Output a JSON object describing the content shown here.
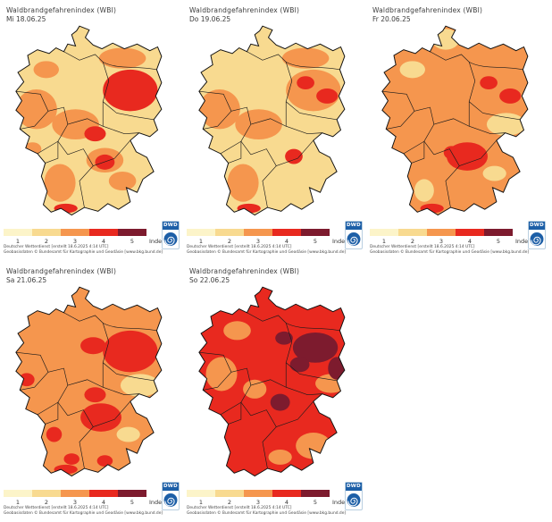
{
  "page": {
    "background": "#ffffff"
  },
  "palette": {
    "1": "#FCF4C9",
    "2": "#F8DA90",
    "3": "#F5964E",
    "4": "#E8291F",
    "5": "#7D1B2E"
  },
  "legend": {
    "ticks": [
      "1",
      "2",
      "3",
      "4",
      "5"
    ],
    "unit": "Index"
  },
  "attribution": {
    "line1": "Deutscher Wetterdienst [erstellt 18.6.2025 4:14 UTC]",
    "line2": "Geobasisdaten © Bundesamt für Kartographie und Geodäsie [www.bkg.bund.de]"
  },
  "logo": {
    "text": "DWD",
    "blue": "#1d5fa7"
  },
  "panels": [
    {
      "title": "Waldbrandgefahrenindex (WBI)",
      "date_label": "Mi 18.06.25",
      "base_index": 2,
      "patches": [
        {
          "region": "nordwest-klein",
          "index": 3
        },
        {
          "region": "mecklenburg",
          "index": 3
        },
        {
          "region": "west",
          "index": 3
        },
        {
          "region": "saar",
          "index": 3
        },
        {
          "region": "mitte",
          "index": 3
        },
        {
          "region": "suedwest",
          "index": 3
        },
        {
          "region": "suedost-klein",
          "index": 3
        },
        {
          "region": "franken",
          "index": 3
        },
        {
          "region": "nordost",
          "index": 4
        },
        {
          "region": "mitte-spot",
          "index": 4
        },
        {
          "region": "franken-spot",
          "index": 4
        },
        {
          "region": "bodensee",
          "index": 4
        }
      ]
    },
    {
      "title": "Waldbrandgefahrenindex (WBI)",
      "date_label": "Do 19.06.25",
      "base_index": 2,
      "patches": [
        {
          "region": "mecklenburg",
          "index": 3
        },
        {
          "region": "nordost",
          "index": 3
        },
        {
          "region": "west",
          "index": 3
        },
        {
          "region": "mitte",
          "index": 3
        },
        {
          "region": "suedwest",
          "index": 3
        },
        {
          "region": "nordost-spot1",
          "index": 4
        },
        {
          "region": "nordost-spot2",
          "index": 4
        },
        {
          "region": "bayern-spot",
          "index": 4
        },
        {
          "region": "bodensee",
          "index": 4
        }
      ]
    },
    {
      "title": "Waldbrandgefahrenindex (WBI)",
      "date_label": "Fr 20.06.25",
      "base_index": 3,
      "patches": [
        {
          "region": "schleswig",
          "index": 2
        },
        {
          "region": "nordwest-klein",
          "index": 2
        },
        {
          "region": "sachsen",
          "index": 2
        },
        {
          "region": "bayern-pale",
          "index": 2
        },
        {
          "region": "bw-pale",
          "index": 2
        },
        {
          "region": "nordost-spot1",
          "index": 4
        },
        {
          "region": "nordost-spot2",
          "index": 4
        },
        {
          "region": "franken-west-spot",
          "index": 4
        },
        {
          "region": "franken-gross",
          "index": 4
        },
        {
          "region": "bodensee",
          "index": 4
        }
      ]
    },
    {
      "title": "Waldbrandgefahrenindex (WBI)",
      "date_label": "Sa 21.06.25",
      "base_index": 3,
      "patches": [
        {
          "region": "sachsen",
          "index": 2
        },
        {
          "region": "bayern-pale",
          "index": 2
        },
        {
          "region": "nordost",
          "index": 4
        },
        {
          "region": "nordost-arm",
          "index": 4
        },
        {
          "region": "eifel-spot",
          "index": 4
        },
        {
          "region": "mitte-spot",
          "index": 4
        },
        {
          "region": "franken-gross",
          "index": 4
        },
        {
          "region": "bw-spot",
          "index": 4
        },
        {
          "region": "sued-spot1",
          "index": 4
        },
        {
          "region": "sued-spot2",
          "index": 4
        },
        {
          "region": "bodensee",
          "index": 4
        }
      ]
    },
    {
      "title": "Waldbrandgefahrenindex (WBI)",
      "date_label": "So 22.06.25",
      "base_index": 4,
      "patches": [
        {
          "region": "nordwest-orange",
          "index": 3
        },
        {
          "region": "west-orange",
          "index": 3
        },
        {
          "region": "mitte-orange",
          "index": 3
        },
        {
          "region": "sachsen-orange",
          "index": 3
        },
        {
          "region": "suedost-orange",
          "index": 3
        },
        {
          "region": "sued-orange",
          "index": 3
        },
        {
          "region": "nordost-dunkel",
          "index": 5
        },
        {
          "region": "nord-dunkel-spot",
          "index": 5
        },
        {
          "region": "brandenburg-dunkel2",
          "index": 5
        },
        {
          "region": "zentrum-dunkel",
          "index": 5
        },
        {
          "region": "ost-dunkel",
          "index": 5
        }
      ]
    }
  ]
}
